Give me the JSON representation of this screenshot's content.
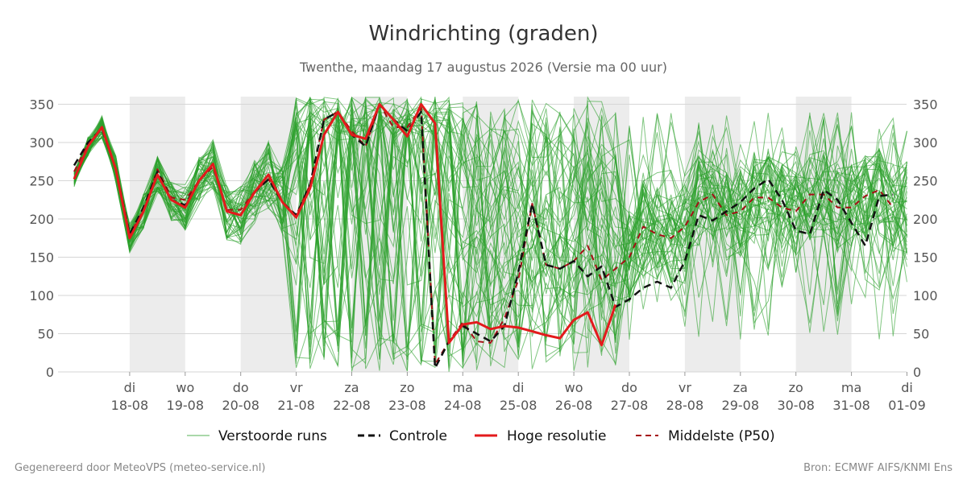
{
  "chart_data": {
    "type": "line",
    "title": "Windrichting (graden)",
    "subtitle": "Twenthe, maandag 17 augustus 2026 (Versie ma 00 uur)",
    "ylim": [
      0,
      360
    ],
    "yticks": [
      0,
      50,
      100,
      150,
      200,
      250,
      300,
      350
    ],
    "start_label": "17-08 00:00",
    "step_hours": 6,
    "day_ticks": [
      {
        "day": "di",
        "date": "18-08"
      },
      {
        "day": "wo",
        "date": "19-08"
      },
      {
        "day": "do",
        "date": "20-08"
      },
      {
        "day": "vr",
        "date": "21-08"
      },
      {
        "day": "za",
        "date": "22-08"
      },
      {
        "day": "zo",
        "date": "23-08"
      },
      {
        "day": "ma",
        "date": "24-08"
      },
      {
        "day": "di",
        "date": "25-08"
      },
      {
        "day": "wo",
        "date": "26-08"
      },
      {
        "day": "do",
        "date": "27-08"
      },
      {
        "day": "vr",
        "date": "28-08"
      },
      {
        "day": "za",
        "date": "29-08"
      },
      {
        "day": "zo",
        "date": "30-08"
      },
      {
        "day": "ma",
        "date": "31-08"
      },
      {
        "day": "di",
        "date": "01-09"
      }
    ],
    "shaded_days": [
      "18-08",
      "20-08",
      "22-08",
      "24-08",
      "26-08",
      "28-08",
      "30-08"
    ],
    "grid": true,
    "legend_position": "bottom",
    "series": [
      {
        "name": "Hoge resolutie",
        "color": "#e31a1c",
        "style": "solid",
        "values": [
          252,
          295,
          320,
          265,
          175,
          210,
          258,
          225,
          215,
          250,
          272,
          210,
          205,
          235,
          258,
          222,
          202,
          240,
          310,
          340,
          310,
          305,
          350,
          330,
          308,
          350,
          325,
          38,
          62,
          65,
          56,
          60,
          58,
          53,
          48,
          44,
          68,
          78,
          35,
          88
        ]
      },
      {
        "name": "Controle",
        "color": "#111111",
        "style": "dashed",
        "values": [
          270,
          300,
          318,
          265,
          180,
          215,
          262,
          225,
          218,
          250,
          272,
          210,
          205,
          235,
          252,
          222,
          205,
          245,
          330,
          340,
          310,
          295,
          350,
          330,
          315,
          340,
          5,
          40,
          60,
          50,
          40,
          60,
          130,
          220,
          140,
          135,
          145,
          125,
          138,
          85,
          95,
          110,
          118,
          110,
          145,
          205,
          198,
          210,
          222,
          240,
          252,
          225,
          185,
          180,
          238,
          225,
          195,
          165,
          230,
          232
        ]
      },
      {
        "name": "Middelste (P50)",
        "color": "#a50f15",
        "style": "dashed",
        "values": [
          262,
          298,
          318,
          265,
          180,
          212,
          265,
          228,
          225,
          250,
          268,
          212,
          212,
          236,
          252,
          222,
          205,
          245,
          330,
          340,
          315,
          295,
          350,
          320,
          320,
          345,
          10,
          40,
          65,
          40,
          38,
          70,
          120,
          220,
          140,
          135,
          145,
          165,
          120,
          135,
          150,
          190,
          180,
          175,
          190,
          222,
          232,
          205,
          210,
          228,
          228,
          215,
          210,
          232,
          232,
          215,
          215,
          230,
          238,
          215
        ]
      }
    ]
  },
  "legend": {
    "ensemble": "Verstoorde runs",
    "control": "Controle",
    "hires": "Hoge resolutie",
    "median": "Middelste (P50)"
  },
  "footer": {
    "left": "Gegenereerd door MeteoVPS (meteo-service.nl)",
    "right": "Bron: ECMWF AIFS/KNMI Ens"
  },
  "colors": {
    "ensemble": "#2ca02c",
    "shade": "#ececec"
  }
}
